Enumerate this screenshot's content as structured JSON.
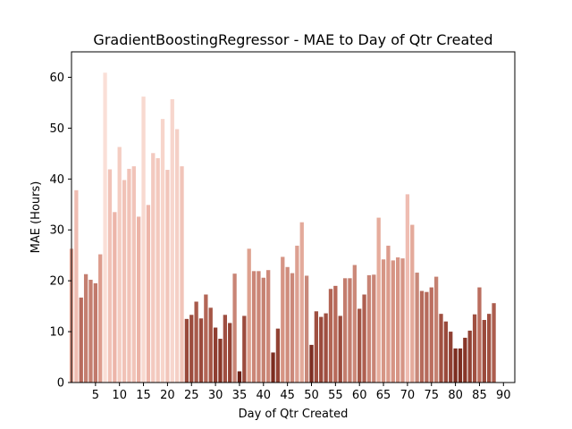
{
  "chart_data": {
    "type": "bar",
    "title": "GradientBoostingRegressor - MAE to Day of Qtr Created",
    "xlabel": "Day of Qtr Created",
    "ylabel": "MAE (Hours)",
    "xlim": [
      0,
      90
    ],
    "ylim": [
      0,
      65
    ],
    "x_ticks": [
      5,
      10,
      15,
      20,
      25,
      30,
      35,
      40,
      45,
      50,
      55,
      60,
      65,
      70,
      75,
      80,
      85,
      90
    ],
    "y_ticks": [
      0,
      10,
      20,
      30,
      40,
      50,
      60
    ],
    "grid": false,
    "legend": "none",
    "x": [
      0,
      1,
      2,
      3,
      4,
      5,
      6,
      7,
      8,
      9,
      10,
      11,
      12,
      13,
      14,
      15,
      16,
      17,
      18,
      19,
      20,
      21,
      22,
      23,
      24,
      25,
      26,
      27,
      28,
      29,
      30,
      31,
      32,
      33,
      34,
      35,
      36,
      37,
      38,
      39,
      40,
      41,
      42,
      43,
      44,
      45,
      46,
      47,
      48,
      49,
      50,
      51,
      52,
      53,
      54,
      55,
      56,
      57,
      58,
      59,
      60,
      61,
      62,
      63,
      64,
      65,
      66,
      67,
      68,
      69,
      70,
      71,
      72,
      73,
      74,
      75,
      76,
      77,
      78,
      79,
      80,
      81,
      82,
      83,
      84,
      85,
      86,
      87,
      88
    ],
    "values": [
      26.3,
      37.8,
      16.7,
      21.3,
      20.2,
      19.5,
      25.2,
      60.9,
      41.9,
      33.5,
      46.3,
      39.8,
      42.0,
      42.5,
      32.6,
      56.2,
      34.9,
      45.1,
      44.1,
      51.8,
      41.8,
      55.7,
      49.8,
      42.5,
      12.5,
      13.3,
      15.9,
      12.6,
      17.3,
      14.7,
      10.8,
      8.6,
      13.3,
      11.7,
      21.4,
      2.2,
      13.1,
      26.3,
      21.9,
      21.9,
      20.6,
      22.1,
      5.9,
      10.6,
      24.7,
      22.7,
      21.5,
      26.9,
      31.5,
      21.0,
      7.4,
      14.0,
      12.9,
      13.6,
      18.4,
      19.0,
      13.1,
      20.5,
      20.5,
      23.1,
      14.5,
      17.3,
      21.1,
      21.2,
      32.4,
      24.2,
      26.9,
      24.0,
      24.6,
      24.4,
      37.0,
      31.0,
      21.6,
      18.0,
      17.8,
      18.7,
      20.8,
      13.5,
      12.0,
      10.0,
      6.7,
      6.7,
      8.8,
      10.2,
      13.4,
      18.7,
      12.3,
      13.5,
      15.6
    ],
    "colors": [
      "#e5a596",
      "#efbdb2",
      "#b86c5e",
      "#c47f70",
      "#c47f70",
      "#c17a6c",
      "#dd9c8d",
      "#fadfd7",
      "#f1c3b8",
      "#ecb5a9",
      "#f4cdc2",
      "#f1c2b7",
      "#f1c3b8",
      "#f1c4b9",
      "#ecb3a7",
      "#f8d9d0",
      "#eeb6aa",
      "#f3c9bf",
      "#f3c8bd",
      "#f7d5cb",
      "#f2c6bb",
      "#f7d6cd",
      "#f5d0c6",
      "#f1c4b9",
      "#99483a",
      "#9c4c3e",
      "#a85a4b",
      "#9b4a3c",
      "#b36656",
      "#a55646",
      "#8f3e31",
      "#883627",
      "#9f4f41",
      "#944335",
      "#c98576",
      "#6a1f15",
      "#9c4c3e",
      "#dea18f",
      "#cb8677",
      "#cb8677",
      "#c58171",
      "#cd8879",
      "#7c2d20",
      "#924234",
      "#d69484",
      "#cf8c7c",
      "#cb8879",
      "#dca091",
      "#e3aa9b",
      "#c8887a",
      "#7c2d22",
      "#9f4f41",
      "#9b4a3c",
      "#9f4f41",
      "#b26555",
      "#b8695a",
      "#9a4a3c",
      "#c37d6e",
      "#c37d6e",
      "#cc8979",
      "#a25444",
      "#ae5f50",
      "#c98576",
      "#c98576",
      "#e6ac9c",
      "#d69585",
      "#dc9b8c",
      "#d69484",
      "#d79586",
      "#d69585",
      "#efbdb2",
      "#e4aa9b",
      "#c88879",
      "#b66a5b",
      "#b66a5b",
      "#bb6e5f",
      "#c58171",
      "#a05041",
      "#9a4a3c",
      "#904033",
      "#7c2d20",
      "#7c2d20",
      "#883628",
      "#924234",
      "#a05041",
      "#bb6e5f",
      "#9a4a3c",
      "#a05041",
      "#ac5d4e"
    ]
  }
}
